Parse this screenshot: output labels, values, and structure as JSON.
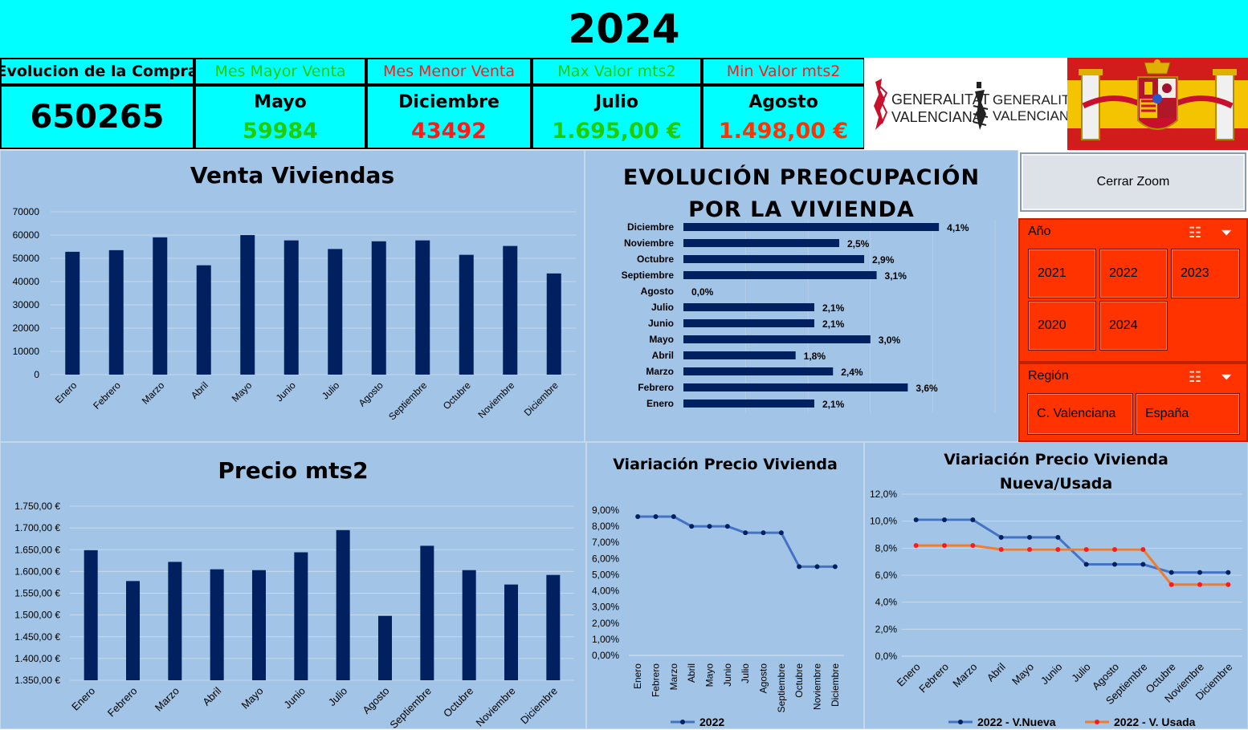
{
  "title": "2024",
  "kpis": {
    "compra": {
      "label": "Evolucion de la Compra",
      "value": "650265"
    },
    "mayor": {
      "label": "Mes Mayor Venta",
      "month": "Mayo",
      "value": "59984",
      "color": "#22cc00"
    },
    "menor": {
      "label": "Mes Menor Venta",
      "month": "Diciembre",
      "value": "43492",
      "color": "#ff1a1a"
    },
    "max_mts2": {
      "label": "Max Valor mts2",
      "month": "Julio",
      "value": "1.695,00 €",
      "color": "#22cc00"
    },
    "min_mts2": {
      "label": "Min Valor mts2",
      "month": "Agosto",
      "value": "1.498,00 €",
      "color": "#ff3300"
    }
  },
  "logos": {
    "line1": "GENERALITAT",
    "line2": "VALENCIANA"
  },
  "zoom_button": "Cerrar Zoom",
  "slicer_year": {
    "title": "Año",
    "options": [
      "2021",
      "2022",
      "2023",
      "2020",
      "2024"
    ]
  },
  "slicer_region": {
    "title": "Región",
    "options": [
      "C. Valenciana",
      "España"
    ]
  },
  "colors": {
    "bar": "#002060",
    "panel": "#a2c4e6",
    "accent": "#00ffff",
    "line_blue": "#4472c4",
    "line_orange": "#ed7d31",
    "slicer": "#ff3300"
  },
  "chart_data": [
    {
      "id": "venta",
      "type": "bar",
      "title": "Venta Viviendas",
      "categories": [
        "Enero",
        "Febrero",
        "Marzo",
        "Abril",
        "Mayo",
        "Junio",
        "Julio",
        "Agosto",
        "Septiembre",
        "Octubre",
        "Noviembre",
        "Diciembre"
      ],
      "values": [
        52800,
        53500,
        59000,
        47000,
        59984,
        57700,
        54000,
        57300,
        57700,
        51500,
        55300,
        43492
      ],
      "ylim": [
        0,
        70000
      ],
      "yticks": [
        "0",
        "10000",
        "20000",
        "30000",
        "40000",
        "50000",
        "60000",
        "70000"
      ],
      "grid": true
    },
    {
      "id": "preocupacion",
      "type": "bar",
      "orientation": "horizontal",
      "title": "EVOLUCIÓN PREOCUPACIÓN POR LA VIVIENDA",
      "title_lines": [
        "EVOLUCIÓN PREOCUPACIÓN",
        "POR LA VIVIENDA"
      ],
      "categories": [
        "Diciembre",
        "Noviembre",
        "Octubre",
        "Septiembre",
        "Agosto",
        "Julio",
        "Junio",
        "Mayo",
        "Abril",
        "Marzo",
        "Febrero",
        "Enero"
      ],
      "values": [
        4.1,
        2.5,
        2.9,
        3.1,
        0.0,
        2.1,
        2.1,
        3.0,
        1.8,
        2.4,
        3.6,
        2.1
      ],
      "labels": [
        "4,1%",
        "2,5%",
        "2,9%",
        "3,1%",
        "0,0%",
        "2,1%",
        "2,1%",
        "3,0%",
        "1,8%",
        "2,4%",
        "3,6%",
        "2,1%"
      ],
      "xlim": [
        0,
        5
      ]
    },
    {
      "id": "precio",
      "type": "bar",
      "title": "Precio mts2",
      "categories": [
        "Enero",
        "Febrero",
        "Marzo",
        "Abril",
        "Mayo",
        "Junio",
        "Julio",
        "Agosto",
        "Septiembre",
        "Octubre",
        "Noviembre",
        "Diciembre"
      ],
      "values": [
        1649,
        1578,
        1622,
        1605,
        1603,
        1644,
        1695,
        1498,
        1659,
        1603,
        1570,
        1592
      ],
      "ylim": [
        1350,
        1750
      ],
      "yticks": [
        "1.350,00 €",
        "1.400,00 €",
        "1.450,00 €",
        "1.500,00 €",
        "1.550,00 €",
        "1.600,00 €",
        "1.650,00 €",
        "1.700,00 €",
        "1.750,00 €"
      ],
      "grid": true
    },
    {
      "id": "variacion",
      "type": "line",
      "title": "Viariación Precio Vivienda",
      "categories": [
        "Enero",
        "Febrero",
        "Marzo",
        "Abril",
        "Mayo",
        "Junio",
        "Julio",
        "Agosto",
        "Septiembre",
        "Octubre",
        "Noviembre",
        "Diciembre"
      ],
      "series": [
        {
          "name": "2022",
          "values": [
            8.6,
            8.6,
            8.6,
            8.0,
            8.0,
            8.0,
            7.6,
            7.6,
            7.6,
            5.5,
            5.5,
            5.5
          ]
        }
      ],
      "ylim": [
        0,
        9
      ],
      "yticks": [
        "0,00%",
        "1,00%",
        "2,00%",
        "3,00%",
        "4,00%",
        "5,00%",
        "6,00%",
        "7,00%",
        "8,00%",
        "9,00%"
      ],
      "legend": "bottom"
    },
    {
      "id": "nueva_usada",
      "type": "line",
      "title": "Viariación Precio Vivienda Nueva/Usada",
      "title_lines": [
        "Viariación Precio Vivienda",
        "Nueva/Usada"
      ],
      "categories": [
        "Enero",
        "Febrero",
        "Marzo",
        "Abril",
        "Mayo",
        "Junio",
        "Julio",
        "Agosto",
        "Septiembre",
        "Octubre",
        "Noviembre",
        "Diciembre"
      ],
      "series": [
        {
          "name": "2022 -  V.Nueva",
          "values": [
            10.1,
            10.1,
            10.1,
            8.8,
            8.8,
            8.8,
            6.8,
            6.8,
            6.8,
            6.2,
            6.2,
            6.2
          ]
        },
        {
          "name": "2022 - V. Usada",
          "values": [
            8.2,
            8.2,
            8.2,
            7.9,
            7.9,
            7.9,
            7.9,
            7.9,
            7.9,
            5.3,
            5.3,
            5.3
          ]
        }
      ],
      "ylim": [
        0,
        12
      ],
      "yticks": [
        "0,0%",
        "2,0%",
        "4,0%",
        "6,0%",
        "8,0%",
        "10,0%",
        "12,0%"
      ],
      "legend": "bottom"
    }
  ]
}
